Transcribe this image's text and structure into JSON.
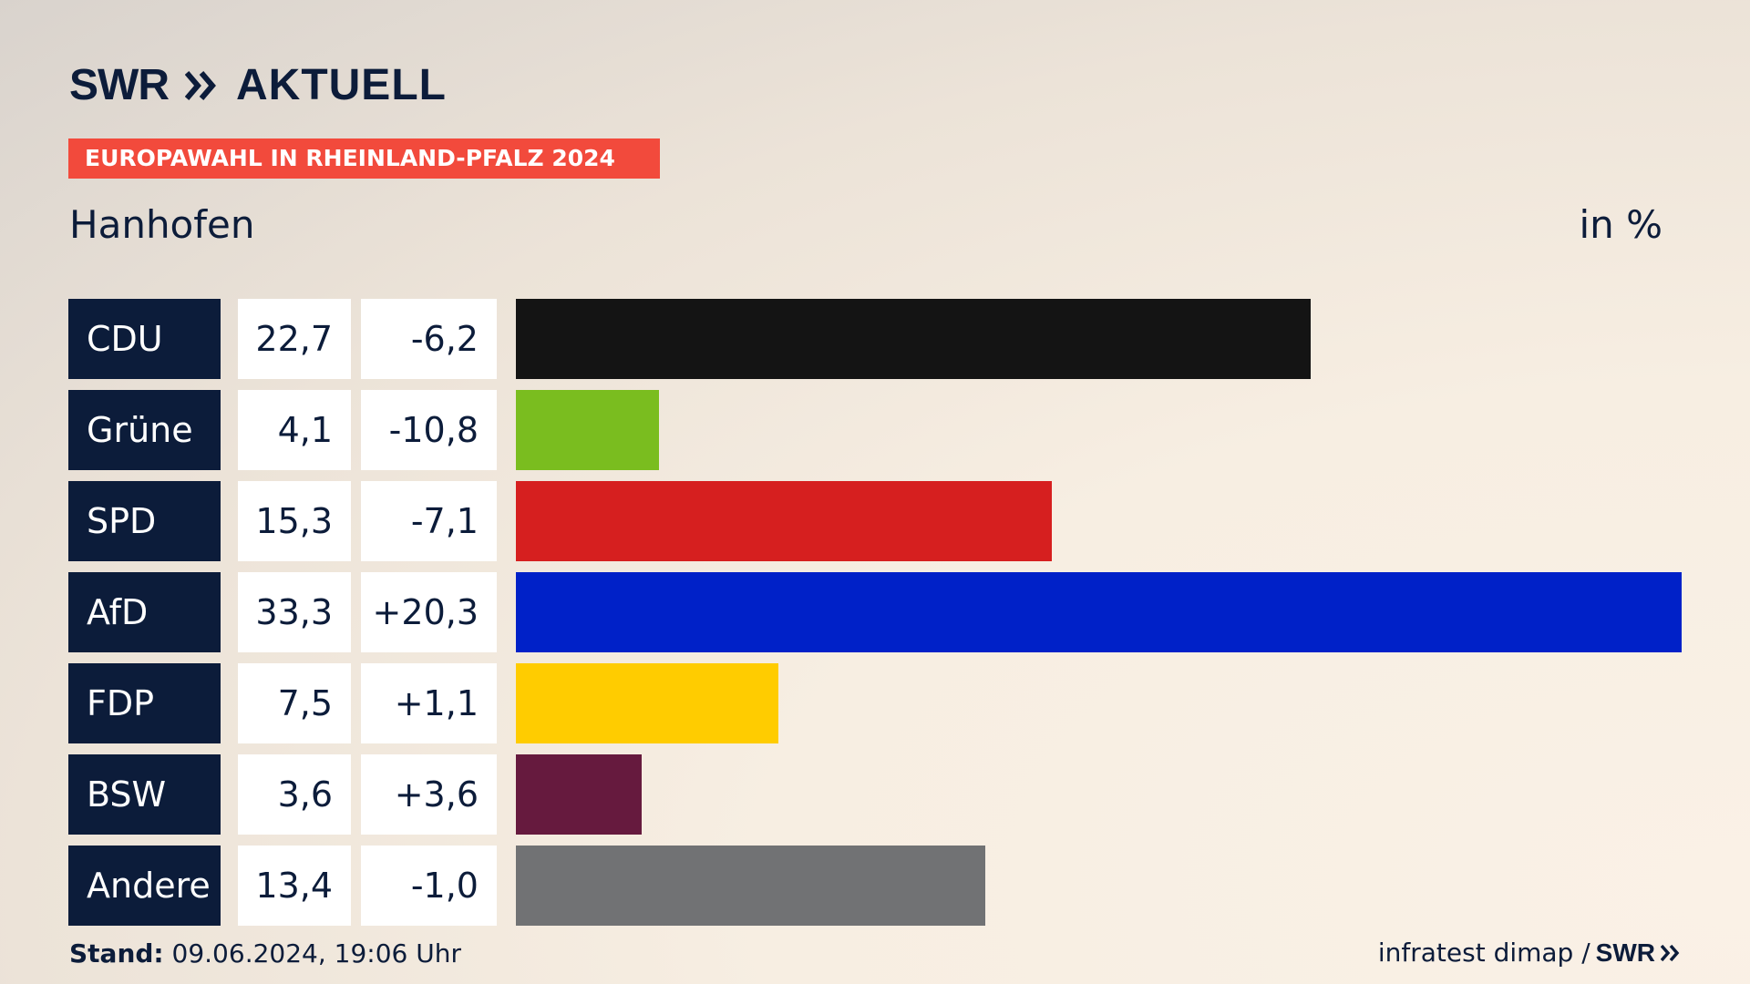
{
  "brand": {
    "logo_swr": "SWR",
    "logo_aktuell": "AKTUELL"
  },
  "banner": "EUROPAWAHL IN RHEINLAND-PFALZ 2024",
  "location": "Hanhofen",
  "unit": "in %",
  "footer": {
    "stand_label": "Stand:",
    "stand_value": "09.06.2024, 19:06 Uhr",
    "source": "infratest dimap /",
    "source_logo": "SWR"
  },
  "colors": {
    "navy": "#0c1c3a",
    "banner": "#f24a3c"
  },
  "chart_data": {
    "type": "bar",
    "title": "Hanhofen",
    "unit": "in %",
    "categories": [
      "CDU",
      "Grüne",
      "SPD",
      "AfD",
      "FDP",
      "BSW",
      "Andere"
    ],
    "values": [
      22.7,
      4.1,
      15.3,
      33.3,
      7.5,
      3.6,
      13.4
    ],
    "value_labels": [
      "22,7",
      "4,1",
      "15,3",
      "33,3",
      "7,5",
      "3,6",
      "13,4"
    ],
    "diff_labels": [
      "-6,2",
      "-10,8",
      "-7,1",
      "+20,3",
      "+1,1",
      "+3,6",
      "-1,0"
    ],
    "bar_colors": [
      "#141414",
      "#7abd1f",
      "#d61f1f",
      "#0021c8",
      "#ffcc00",
      "#661a3e",
      "#717274"
    ],
    "xlim": [
      0,
      33.3
    ]
  }
}
